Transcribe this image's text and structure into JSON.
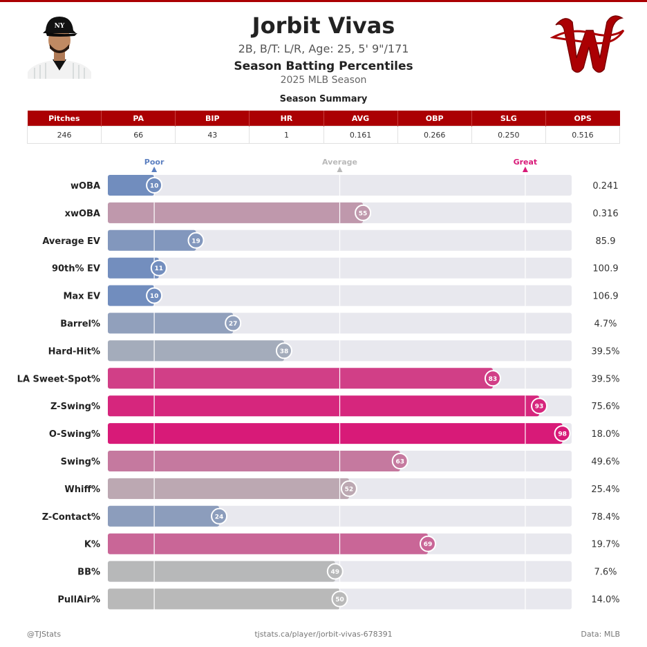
{
  "player": {
    "name": "Jorbit Vivas",
    "info": "2B, B/T: L/R, Age: 25, 5' 9\"/171",
    "heading": "Season Batting Percentiles",
    "season": "2025 MLB Season",
    "cap_logo_text": "NY"
  },
  "summary": {
    "title": "Season Summary",
    "headers": [
      "Pitches",
      "PA",
      "BIP",
      "HR",
      "AVG",
      "OBP",
      "SLG",
      "OPS"
    ],
    "values": [
      "246",
      "66",
      "43",
      "1",
      "0.161",
      "0.266",
      "0.250",
      "0.516"
    ]
  },
  "colors": {
    "brand": "#ab0003",
    "poor": "#5b7fc0",
    "average": "#b9b9b9",
    "great": "#d81a78",
    "track": "#e8e8ee"
  },
  "chart_data": {
    "type": "bar",
    "orientation": "horizontal",
    "title": "Season Batting Percentiles",
    "xlim": [
      0,
      100
    ],
    "markers": [
      {
        "label": "Poor",
        "value": 10
      },
      {
        "label": "Average",
        "value": 50
      },
      {
        "label": "Great",
        "value": 90
      }
    ],
    "categories": [
      "wOBA",
      "xwOBA",
      "Average EV",
      "90th% EV",
      "Max EV",
      "Barrel%",
      "Hard-Hit%",
      "LA Sweet-Spot%",
      "Z-Swing%",
      "O-Swing%",
      "Swing%",
      "Whiff%",
      "Z-Contact%",
      "K%",
      "BB%",
      "PullAir%"
    ],
    "percentiles": [
      10,
      55,
      19,
      11,
      10,
      27,
      38,
      83,
      93,
      98,
      63,
      52,
      24,
      69,
      49,
      50
    ],
    "stat_values": [
      "0.241",
      "0.316",
      "85.9",
      "100.9",
      "106.9",
      "4.7%",
      "39.5%",
      "39.5%",
      "75.6%",
      "18.0%",
      "49.6%",
      "25.4%",
      "78.4%",
      "19.7%",
      "7.6%",
      "14.0%"
    ]
  },
  "footer": {
    "left": "@TJStats",
    "center": "tjstats.ca/player/jorbit-vivas-678391",
    "right": "Data: MLB"
  }
}
